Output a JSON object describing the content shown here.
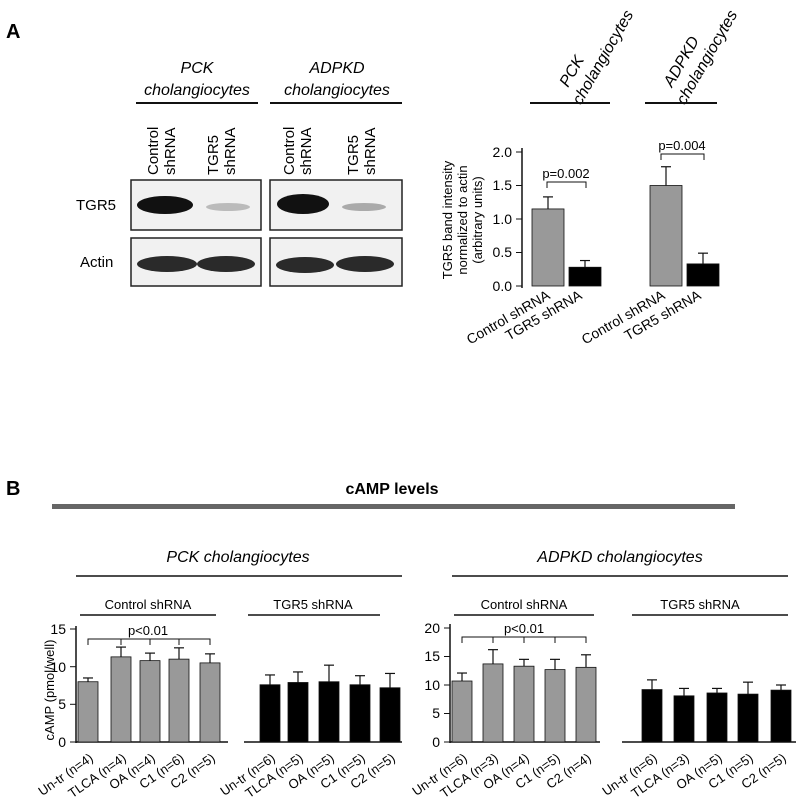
{
  "panel_a": {
    "label": "A",
    "blot": {
      "groups": [
        {
          "title_line1": "PCK",
          "title_line2": "cholangiocytes",
          "lanes": [
            [
              "Control",
              "shRNA"
            ],
            [
              "TGR5",
              "shRNA"
            ]
          ]
        },
        {
          "title_line1": "ADPKD",
          "title_line2": "cholangiocytes",
          "lanes": [
            [
              "Control",
              "shRNA"
            ],
            [
              "TGR5",
              "shRNA"
            ]
          ]
        }
      ],
      "rows": [
        "TGR5",
        "Actin"
      ],
      "band_intensities": {
        "TGR5": [
          [
            1.0,
            0.15
          ],
          [
            1.0,
            0.2
          ]
        ],
        "Actin": [
          [
            1.0,
            1.0
          ],
          [
            1.0,
            1.0
          ]
        ]
      }
    },
    "bar_header": [
      {
        "line1": "PCK",
        "line2": "cholangiocytes"
      },
      {
        "line1": "ADPKD",
        "line2": "cholangiocytes"
      }
    ],
    "ylabel_lines": [
      "TGR5 band intensity",
      "normalized to actin",
      "(arbitrary units)"
    ],
    "yticks": [
      "0.0",
      "0.5",
      "1.0",
      "1.5",
      "2.0"
    ],
    "pvalues": [
      "p=0.002",
      "p=0.004"
    ],
    "xlabels": [
      "Control shRNA",
      "TGR5 shRNA",
      "Control shRNA",
      "TGR5 shRNA"
    ]
  },
  "panel_b": {
    "label": "B",
    "title": "cAMP levels",
    "subpanels": [
      {
        "cell_type": "PCK cholangiocytes",
        "group_labels": [
          "Control shRNA",
          "TGR5 shRNA"
        ],
        "yticks": [
          "0",
          "5",
          "10",
          "15"
        ],
        "pvalue": "p<0.01",
        "xlabels": [
          "Un-tr (n=4)",
          "TLCA (n=4)",
          "OA (n=4)",
          "C1 (n=6)",
          "C2 (n=5)",
          "Un-tr (n=6)",
          "TLCA (n=5)",
          "OA (n=5)",
          "C1 (n=5)",
          "C2 (n=5)"
        ]
      },
      {
        "cell_type": "ADPKD cholangiocytes",
        "group_labels": [
          "Control shRNA",
          "TGR5 shRNA"
        ],
        "yticks": [
          "0",
          "5",
          "10",
          "15",
          "20"
        ],
        "pvalue": "p<0.01",
        "xlabels": [
          "Un-tr (n=6)",
          "TLCA (n=3)",
          "OA (n=4)",
          "C1 (n=5)",
          "C2 (n=4)",
          "Un-tr (n=6)",
          "TLCA (n=3)",
          "OA (n=5)",
          "C1 (n=5)",
          "C2 (n=5)"
        ]
      }
    ],
    "ylabel": "cAMP (pmol/well)"
  },
  "chart_data": [
    {
      "type": "bar",
      "categories": [
        "Control shRNA",
        "TGR5 shRNA",
        "Control shRNA",
        "TGR5 shRNA"
      ],
      "values": [
        1.15,
        0.28,
        1.5,
        0.33
      ],
      "errors": [
        0.18,
        0.1,
        0.28,
        0.16
      ],
      "colors": [
        "#999999",
        "#000000",
        "#999999",
        "#000000"
      ],
      "ylabel": "TGR5 band intensity normalized to actin (arbitrary units)",
      "ylim": [
        0,
        2.0
      ],
      "annotations": [
        "p=0.002",
        "p=0.004"
      ]
    },
    {
      "type": "bar",
      "title": "PCK cholangiocytes",
      "categories": [
        "Un-tr (n=4)",
        "TLCA (n=4)",
        "OA (n=4)",
        "C1 (n=6)",
        "C2 (n=5)",
        "Un-tr (n=6)",
        "TLCA (n=5)",
        "OA (n=5)",
        "C1 (n=5)",
        "C2 (n=5)"
      ],
      "values": [
        8.0,
        11.3,
        10.8,
        11.0,
        10.5,
        7.6,
        7.9,
        8.0,
        7.6,
        7.2
      ],
      "errors": [
        0.5,
        1.3,
        1.0,
        1.5,
        1.2,
        1.3,
        1.4,
        2.2,
        1.2,
        1.9
      ],
      "colors": [
        "#999999",
        "#999999",
        "#999999",
        "#999999",
        "#999999",
        "#000000",
        "#000000",
        "#000000",
        "#000000",
        "#000000"
      ],
      "ylabel": "cAMP (pmol/well)",
      "ylim": [
        0,
        15
      ],
      "annotations": [
        "p<0.01"
      ]
    },
    {
      "type": "bar",
      "title": "ADPKD cholangiocytes",
      "categories": [
        "Un-tr (n=6)",
        "TLCA (n=3)",
        "OA (n=4)",
        "C1 (n=5)",
        "C2 (n=4)",
        "Un-tr (n=6)",
        "TLCA (n=3)",
        "OA (n=5)",
        "C1 (n=5)",
        "C2 (n=5)"
      ],
      "values": [
        10.7,
        13.7,
        13.3,
        12.7,
        13.1,
        9.2,
        8.1,
        8.6,
        8.4,
        9.1
      ],
      "errors": [
        1.4,
        2.5,
        1.2,
        1.8,
        2.2,
        1.7,
        1.3,
        0.8,
        2.1,
        0.9
      ],
      "colors": [
        "#999999",
        "#999999",
        "#999999",
        "#999999",
        "#999999",
        "#000000",
        "#000000",
        "#000000",
        "#000000",
        "#000000"
      ],
      "ylim": [
        0,
        20
      ],
      "annotations": [
        "p<0.01"
      ]
    }
  ]
}
